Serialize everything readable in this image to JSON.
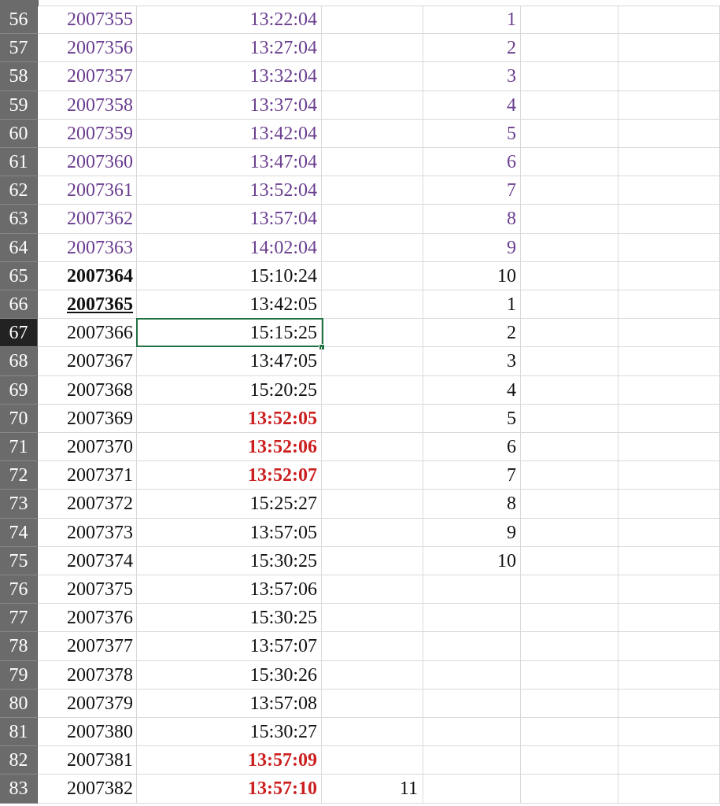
{
  "colors": {
    "purple": "#6a3d8f",
    "red": "#cc1f1f",
    "black": "#111111",
    "selection": "#217346"
  },
  "selected_cell": {
    "row": "67",
    "column": "B"
  },
  "rows": [
    {
      "n": "56",
      "a": "2007355",
      "b": "13:22:04",
      "c": "",
      "d": "1",
      "style": "purple"
    },
    {
      "n": "57",
      "a": "2007356",
      "b": "13:27:04",
      "c": "",
      "d": "2",
      "style": "purple"
    },
    {
      "n": "58",
      "a": "2007357",
      "b": "13:32:04",
      "c": "",
      "d": "3",
      "style": "purple"
    },
    {
      "n": "59",
      "a": "2007358",
      "b": "13:37:04",
      "c": "",
      "d": "4",
      "style": "purple"
    },
    {
      "n": "60",
      "a": "2007359",
      "b": "13:42:04",
      "c": "",
      "d": "5",
      "style": "purple"
    },
    {
      "n": "61",
      "a": "2007360",
      "b": "13:47:04",
      "c": "",
      "d": "6",
      "style": "purple"
    },
    {
      "n": "62",
      "a": "2007361",
      "b": "13:52:04",
      "c": "",
      "d": "7",
      "style": "purple"
    },
    {
      "n": "63",
      "a": "2007362",
      "b": "13:57:04",
      "c": "",
      "d": "8",
      "style": "purple"
    },
    {
      "n": "64",
      "a": "2007363",
      "b": "14:02:04",
      "c": "",
      "d": "9",
      "style": "purple"
    },
    {
      "n": "65",
      "a": "2007364",
      "b": "15:10:24",
      "c": "",
      "d": "10",
      "style": "bold"
    },
    {
      "n": "66",
      "a": "2007365",
      "b": "13:42:05",
      "c": "",
      "d": "1",
      "style": "bold-underline"
    },
    {
      "n": "67",
      "a": "2007366",
      "b": "15:15:25",
      "c": "",
      "d": "2",
      "style": ""
    },
    {
      "n": "68",
      "a": "2007367",
      "b": "13:47:05",
      "c": "",
      "d": "3",
      "style": ""
    },
    {
      "n": "69",
      "a": "2007368",
      "b": "15:20:25",
      "c": "",
      "d": "4",
      "style": ""
    },
    {
      "n": "70",
      "a": "2007369",
      "b": "13:52:05",
      "c": "",
      "d": "5",
      "style": "red-time"
    },
    {
      "n": "71",
      "a": "2007370",
      "b": "13:52:06",
      "c": "",
      "d": "6",
      "style": "red-time"
    },
    {
      "n": "72",
      "a": "2007371",
      "b": "13:52:07",
      "c": "",
      "d": "7",
      "style": "red-time"
    },
    {
      "n": "73",
      "a": "2007372",
      "b": "15:25:27",
      "c": "",
      "d": "8",
      "style": ""
    },
    {
      "n": "74",
      "a": "2007373",
      "b": "13:57:05",
      "c": "",
      "d": "9",
      "style": ""
    },
    {
      "n": "75",
      "a": "2007374",
      "b": "15:30:25",
      "c": "",
      "d": "10",
      "style": ""
    },
    {
      "n": "76",
      "a": "2007375",
      "b": "13:57:06",
      "c": "",
      "d": "",
      "style": ""
    },
    {
      "n": "77",
      "a": "2007376",
      "b": "15:30:25",
      "c": "",
      "d": "",
      "style": ""
    },
    {
      "n": "78",
      "a": "2007377",
      "b": "13:57:07",
      "c": "",
      "d": "",
      "style": ""
    },
    {
      "n": "79",
      "a": "2007378",
      "b": "15:30:26",
      "c": "",
      "d": "",
      "style": ""
    },
    {
      "n": "80",
      "a": "2007379",
      "b": "13:57:08",
      "c": "",
      "d": "",
      "style": ""
    },
    {
      "n": "81",
      "a": "2007380",
      "b": "15:30:27",
      "c": "",
      "d": "",
      "style": ""
    },
    {
      "n": "82",
      "a": "2007381",
      "b": "13:57:09",
      "c": "",
      "d": "",
      "style": "red-time"
    },
    {
      "n": "83",
      "a": "2007382",
      "b": "13:57:10",
      "c": "11",
      "d": "",
      "style": "red-time"
    }
  ]
}
